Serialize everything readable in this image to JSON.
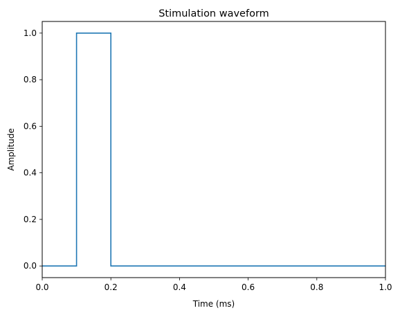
{
  "chart_data": {
    "type": "line",
    "title": "Stimulation waveform",
    "xlabel": "Time (ms)",
    "ylabel": "Amplitude",
    "xlim": [
      0.0,
      1.0
    ],
    "ylim": [
      -0.05,
      1.05
    ],
    "xticks": [
      0.0,
      0.2,
      0.4,
      0.6,
      0.8,
      1.0
    ],
    "xtick_labels": [
      "0.0",
      "0.2",
      "0.4",
      "0.6",
      "0.8",
      "1.0"
    ],
    "yticks": [
      0.0,
      0.2,
      0.4,
      0.6,
      0.8,
      1.0
    ],
    "ytick_labels": [
      "0.0",
      "0.2",
      "0.4",
      "0.6",
      "0.8",
      "1.0"
    ],
    "grid": false,
    "line_style": "steps",
    "series": [
      {
        "color": "#1f77b4",
        "x": [
          0.0,
          0.1,
          0.1,
          0.2,
          0.2,
          1.0
        ],
        "y": [
          0.0,
          0.0,
          1.0,
          1.0,
          0.0,
          0.0
        ]
      }
    ]
  }
}
